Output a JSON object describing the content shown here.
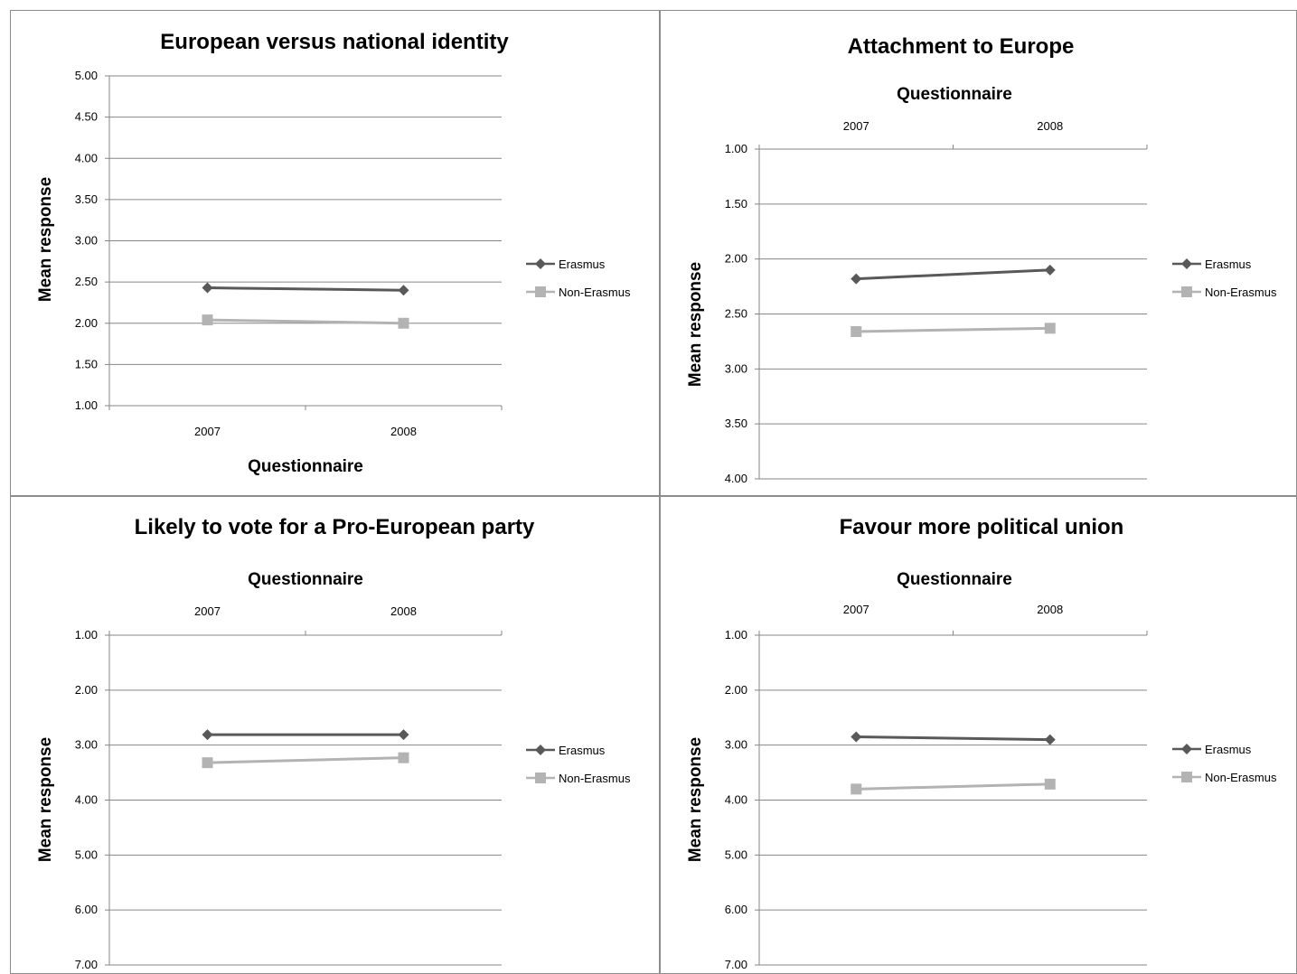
{
  "chart_data": [
    {
      "type": "line",
      "title": "European versus national identity",
      "xlabel": "Questionnaire",
      "ylabel": "Mean response",
      "categories": [
        "2007",
        "2008"
      ],
      "x_axis_position": "bottom",
      "y_reversed": false,
      "ylim": [
        1,
        5
      ],
      "y_ticks": [
        "1.00",
        "1.50",
        "2.00",
        "2.50",
        "3.00",
        "3.50",
        "4.00",
        "4.50",
        "5.00"
      ],
      "grid": true,
      "legend": "right",
      "series": [
        {
          "name": "Erasmus",
          "values": [
            2.43,
            2.4
          ],
          "color": "#595959",
          "marker": "diamond"
        },
        {
          "name": "Non-Erasmus",
          "values": [
            2.04,
            2.0
          ],
          "color": "#b3b3b3",
          "marker": "square"
        }
      ]
    },
    {
      "type": "line",
      "title": "Attachment to Europe",
      "xlabel": "Questionnaire",
      "ylabel": "Mean response",
      "categories": [
        "2007",
        "2008"
      ],
      "x_axis_position": "top",
      "y_reversed": true,
      "ylim": [
        1,
        4
      ],
      "y_ticks": [
        "1.00",
        "1.50",
        "2.00",
        "2.50",
        "3.00",
        "3.50",
        "4.00"
      ],
      "grid": true,
      "legend": "right",
      "series": [
        {
          "name": "Erasmus",
          "values": [
            2.18,
            2.1
          ],
          "color": "#595959",
          "marker": "diamond"
        },
        {
          "name": "Non-Erasmus",
          "values": [
            2.66,
            2.63
          ],
          "color": "#b3b3b3",
          "marker": "square"
        }
      ]
    },
    {
      "type": "line",
      "title": "Likely to vote for a Pro-European party",
      "xlabel": "Questionnaire",
      "ylabel": "Mean response",
      "categories": [
        "2007",
        "2008"
      ],
      "x_axis_position": "top",
      "y_reversed": true,
      "ylim": [
        1,
        7
      ],
      "y_ticks": [
        "1.00",
        "2.00",
        "3.00",
        "4.00",
        "5.00",
        "6.00",
        "7.00"
      ],
      "grid": true,
      "legend": "right",
      "series": [
        {
          "name": "Erasmus",
          "values": [
            2.81,
            2.81
          ],
          "color": "#595959",
          "marker": "diamond"
        },
        {
          "name": "Non-Erasmus",
          "values": [
            3.32,
            3.23
          ],
          "color": "#b3b3b3",
          "marker": "square"
        }
      ]
    },
    {
      "type": "line",
      "title": "Favour more political union",
      "xlabel": "Questionnaire",
      "ylabel": "Mean response",
      "categories": [
        "2007",
        "2008"
      ],
      "x_axis_position": "top",
      "y_reversed": true,
      "ylim": [
        1,
        7
      ],
      "y_ticks": [
        "1.00",
        "2.00",
        "3.00",
        "4.00",
        "5.00",
        "6.00",
        "7.00"
      ],
      "grid": true,
      "legend": "right",
      "series": [
        {
          "name": "Erasmus",
          "values": [
            2.85,
            2.9
          ],
          "color": "#595959",
          "marker": "diamond"
        },
        {
          "name": "Non-Erasmus",
          "values": [
            3.8,
            3.71
          ],
          "color": "#b3b3b3",
          "marker": "square"
        }
      ]
    }
  ]
}
